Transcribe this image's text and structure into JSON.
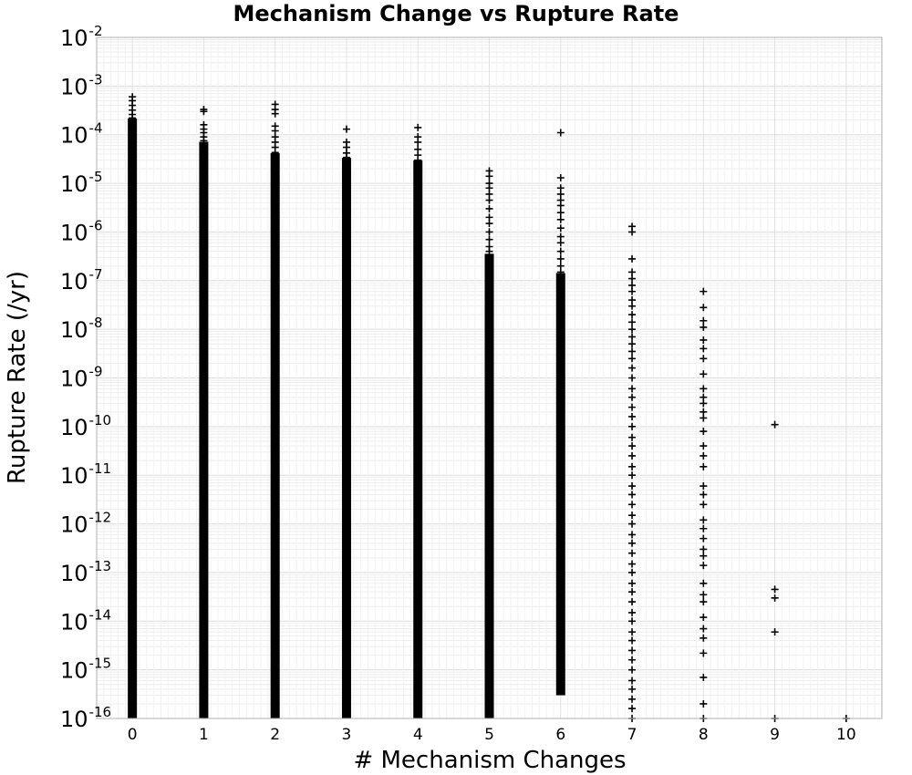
{
  "chart_data": {
    "type": "scatter",
    "title": "Mechanism Change vs Rupture Rate",
    "xlabel": "# Mechanism Changes",
    "ylabel": "Rupture Rate (/yr)",
    "x_ticks": [
      "0",
      "1",
      "2",
      "3",
      "4",
      "5",
      "6",
      "7",
      "8",
      "9",
      "10"
    ],
    "xlim": [
      -0.5,
      10.5
    ],
    "ylim": [
      1e-16,
      0.01
    ],
    "y_scale": "log",
    "y_ticks": [
      {
        "base": "10",
        "exp": "-2"
      },
      {
        "base": "10",
        "exp": "-3"
      },
      {
        "base": "10",
        "exp": "-4"
      },
      {
        "base": "10",
        "exp": "-5"
      },
      {
        "base": "10",
        "exp": "-6"
      },
      {
        "base": "10",
        "exp": "-7"
      },
      {
        "base": "10",
        "exp": "-8"
      },
      {
        "base": "10",
        "exp": "-9"
      },
      {
        "base": "10",
        "exp": "-10"
      },
      {
        "base": "10",
        "exp": "-11"
      },
      {
        "base": "10",
        "exp": "-12"
      },
      {
        "base": "10",
        "exp": "-13"
      },
      {
        "base": "10",
        "exp": "-14"
      },
      {
        "base": "10",
        "exp": "-15"
      },
      {
        "base": "10",
        "exp": "-16"
      }
    ],
    "grid": true,
    "marker": "+",
    "marker_color": "#000000",
    "dense_ranges": [
      {
        "x": 0,
        "min": 1e-16,
        "max": 0.00018
      },
      {
        "x": 1,
        "min": 1e-16,
        "max": 6e-05
      },
      {
        "x": 2,
        "min": 1e-16,
        "max": 3.5e-05
      },
      {
        "x": 3,
        "min": 1e-16,
        "max": 2.8e-05
      },
      {
        "x": 4,
        "min": 1e-16,
        "max": 2.5e-05
      },
      {
        "x": 5,
        "min": 1e-16,
        "max": 3e-07
      },
      {
        "x": 6,
        "min": 3e-16,
        "max": 1.2e-07
      }
    ],
    "points": [
      {
        "x": 0,
        "y": 0.0006
      },
      {
        "x": 0,
        "y": 0.0005
      },
      {
        "x": 0,
        "y": 0.0004
      },
      {
        "x": 0,
        "y": 0.00032
      },
      {
        "x": 0,
        "y": 0.00026
      },
      {
        "x": 0,
        "y": 0.00022
      },
      {
        "x": 1,
        "y": 0.00033
      },
      {
        "x": 1,
        "y": 0.0003
      },
      {
        "x": 1,
        "y": 0.00016
      },
      {
        "x": 1,
        "y": 0.00013
      },
      {
        "x": 1,
        "y": 0.00011
      },
      {
        "x": 1,
        "y": 9e-05
      },
      {
        "x": 1,
        "y": 7.5e-05
      },
      {
        "x": 2,
        "y": 0.00042
      },
      {
        "x": 2,
        "y": 0.00033
      },
      {
        "x": 2,
        "y": 0.00027
      },
      {
        "x": 2,
        "y": 0.00015
      },
      {
        "x": 2,
        "y": 0.00012
      },
      {
        "x": 2,
        "y": 9e-05
      },
      {
        "x": 2,
        "y": 7e-05
      },
      {
        "x": 2,
        "y": 5.5e-05
      },
      {
        "x": 2,
        "y": 4.3e-05
      },
      {
        "x": 3,
        "y": 0.00013
      },
      {
        "x": 3,
        "y": 7e-05
      },
      {
        "x": 3,
        "y": 5.5e-05
      },
      {
        "x": 3,
        "y": 4.2e-05
      },
      {
        "x": 3,
        "y": 3.4e-05
      },
      {
        "x": 4,
        "y": 0.00014
      },
      {
        "x": 4,
        "y": 9e-05
      },
      {
        "x": 4,
        "y": 7e-05
      },
      {
        "x": 4,
        "y": 5e-05
      },
      {
        "x": 4,
        "y": 3.8e-05
      },
      {
        "x": 4,
        "y": 3e-05
      },
      {
        "x": 5,
        "y": 1.8e-05
      },
      {
        "x": 5,
        "y": 1.4e-05
      },
      {
        "x": 5,
        "y": 1e-05
      },
      {
        "x": 5,
        "y": 8e-06
      },
      {
        "x": 5,
        "y": 6e-06
      },
      {
        "x": 5,
        "y": 4.5e-06
      },
      {
        "x": 5,
        "y": 3e-06
      },
      {
        "x": 5,
        "y": 2e-06
      },
      {
        "x": 5,
        "y": 1.5e-06
      },
      {
        "x": 5,
        "y": 1e-06
      },
      {
        "x": 5,
        "y": 7e-07
      },
      {
        "x": 5,
        "y": 5e-07
      },
      {
        "x": 5,
        "y": 4e-07
      },
      {
        "x": 6,
        "y": 0.00011
      },
      {
        "x": 6,
        "y": 1.3e-05
      },
      {
        "x": 6,
        "y": 8e-06
      },
      {
        "x": 6,
        "y": 6e-06
      },
      {
        "x": 6,
        "y": 4.5e-06
      },
      {
        "x": 6,
        "y": 3.5e-06
      },
      {
        "x": 6,
        "y": 2.5e-06
      },
      {
        "x": 6,
        "y": 1.8e-06
      },
      {
        "x": 6,
        "y": 1.2e-06
      },
      {
        "x": 6,
        "y": 8e-07
      },
      {
        "x": 6,
        "y": 6e-07
      },
      {
        "x": 6,
        "y": 4e-07
      },
      {
        "x": 6,
        "y": 2.8e-07
      },
      {
        "x": 6,
        "y": 2e-07
      },
      {
        "x": 6,
        "y": 1.5e-07
      },
      {
        "x": 7,
        "y": 1.3e-06
      },
      {
        "x": 7,
        "y": 1e-06
      },
      {
        "x": 7,
        "y": 2.8e-07
      },
      {
        "x": 7,
        "y": 1.5e-07
      },
      {
        "x": 7,
        "y": 1.1e-07
      },
      {
        "x": 7,
        "y": 8e-08
      },
      {
        "x": 7,
        "y": 6e-08
      },
      {
        "x": 7,
        "y": 4e-08
      },
      {
        "x": 7,
        "y": 3e-08
      },
      {
        "x": 7,
        "y": 2e-08
      },
      {
        "x": 7,
        "y": 1.4e-08
      },
      {
        "x": 7,
        "y": 1e-08
      },
      {
        "x": 7,
        "y": 7e-09
      },
      {
        "x": 7,
        "y": 5e-09
      },
      {
        "x": 7,
        "y": 3.5e-09
      },
      {
        "x": 7,
        "y": 2.5e-09
      },
      {
        "x": 7,
        "y": 1.6e-09
      },
      {
        "x": 7,
        "y": 1e-09
      },
      {
        "x": 7,
        "y": 6e-10
      },
      {
        "x": 7,
        "y": 4e-10
      },
      {
        "x": 7,
        "y": 2.5e-10
      },
      {
        "x": 7,
        "y": 1.6e-10
      },
      {
        "x": 7,
        "y": 1e-10
      },
      {
        "x": 7,
        "y": 6e-11
      },
      {
        "x": 7,
        "y": 4e-11
      },
      {
        "x": 7,
        "y": 2.5e-11
      },
      {
        "x": 7,
        "y": 1.5e-11
      },
      {
        "x": 7,
        "y": 1e-11
      },
      {
        "x": 7,
        "y": 6e-12
      },
      {
        "x": 7,
        "y": 4e-12
      },
      {
        "x": 7,
        "y": 2.5e-12
      },
      {
        "x": 7,
        "y": 1.5e-12
      },
      {
        "x": 7,
        "y": 1e-12
      },
      {
        "x": 7,
        "y": 6e-13
      },
      {
        "x": 7,
        "y": 4e-13
      },
      {
        "x": 7,
        "y": 2.5e-13
      },
      {
        "x": 7,
        "y": 1.5e-13
      },
      {
        "x": 7,
        "y": 1e-13
      },
      {
        "x": 7,
        "y": 6e-14
      },
      {
        "x": 7,
        "y": 4e-14
      },
      {
        "x": 7,
        "y": 2.5e-14
      },
      {
        "x": 7,
        "y": 1.5e-14
      },
      {
        "x": 7,
        "y": 1e-14
      },
      {
        "x": 7,
        "y": 6e-15
      },
      {
        "x": 7,
        "y": 4e-15
      },
      {
        "x": 7,
        "y": 2.5e-15
      },
      {
        "x": 7,
        "y": 1.6e-15
      },
      {
        "x": 7,
        "y": 1e-15
      },
      {
        "x": 7,
        "y": 6e-16
      },
      {
        "x": 7,
        "y": 4e-16
      },
      {
        "x": 7,
        "y": 2.5e-16
      },
      {
        "x": 7,
        "y": 1.6e-16
      },
      {
        "x": 7,
        "y": 1e-16
      },
      {
        "x": 8,
        "y": 6e-08
      },
      {
        "x": 8,
        "y": 2.8e-08
      },
      {
        "x": 8,
        "y": 1.5e-08
      },
      {
        "x": 8,
        "y": 1.1e-08
      },
      {
        "x": 8,
        "y": 6e-09
      },
      {
        "x": 8,
        "y": 4e-09
      },
      {
        "x": 8,
        "y": 2.5e-09
      },
      {
        "x": 8,
        "y": 1.2e-09
      },
      {
        "x": 8,
        "y": 6e-10
      },
      {
        "x": 8,
        "y": 4e-10
      },
      {
        "x": 8,
        "y": 3e-10
      },
      {
        "x": 8,
        "y": 2e-10
      },
      {
        "x": 8,
        "y": 1.5e-10
      },
      {
        "x": 8,
        "y": 8e-11
      },
      {
        "x": 8,
        "y": 4e-11
      },
      {
        "x": 8,
        "y": 2.5e-11
      },
      {
        "x": 8,
        "y": 1.5e-11
      },
      {
        "x": 8,
        "y": 6e-12
      },
      {
        "x": 8,
        "y": 4e-12
      },
      {
        "x": 8,
        "y": 2.5e-12
      },
      {
        "x": 8,
        "y": 1.2e-12
      },
      {
        "x": 8,
        "y": 8e-13
      },
      {
        "x": 8,
        "y": 5e-13
      },
      {
        "x": 8,
        "y": 3e-13
      },
      {
        "x": 8,
        "y": 2.2e-13
      },
      {
        "x": 8,
        "y": 1.4e-13
      },
      {
        "x": 8,
        "y": 6e-14
      },
      {
        "x": 8,
        "y": 3.5e-14
      },
      {
        "x": 8,
        "y": 2.5e-14
      },
      {
        "x": 8,
        "y": 1.2e-14
      },
      {
        "x": 8,
        "y": 7e-15
      },
      {
        "x": 8,
        "y": 4.5e-15
      },
      {
        "x": 8,
        "y": 2.2e-15
      },
      {
        "x": 8,
        "y": 7e-16
      },
      {
        "x": 8,
        "y": 2e-16
      },
      {
        "x": 8,
        "y": 1e-16
      },
      {
        "x": 9,
        "y": 1.1e-10
      },
      {
        "x": 9,
        "y": 4.5e-14
      },
      {
        "x": 9,
        "y": 3e-14
      },
      {
        "x": 9,
        "y": 6e-15
      },
      {
        "x": 9,
        "y": 1e-16
      },
      {
        "x": 10,
        "y": 1e-16
      }
    ]
  }
}
